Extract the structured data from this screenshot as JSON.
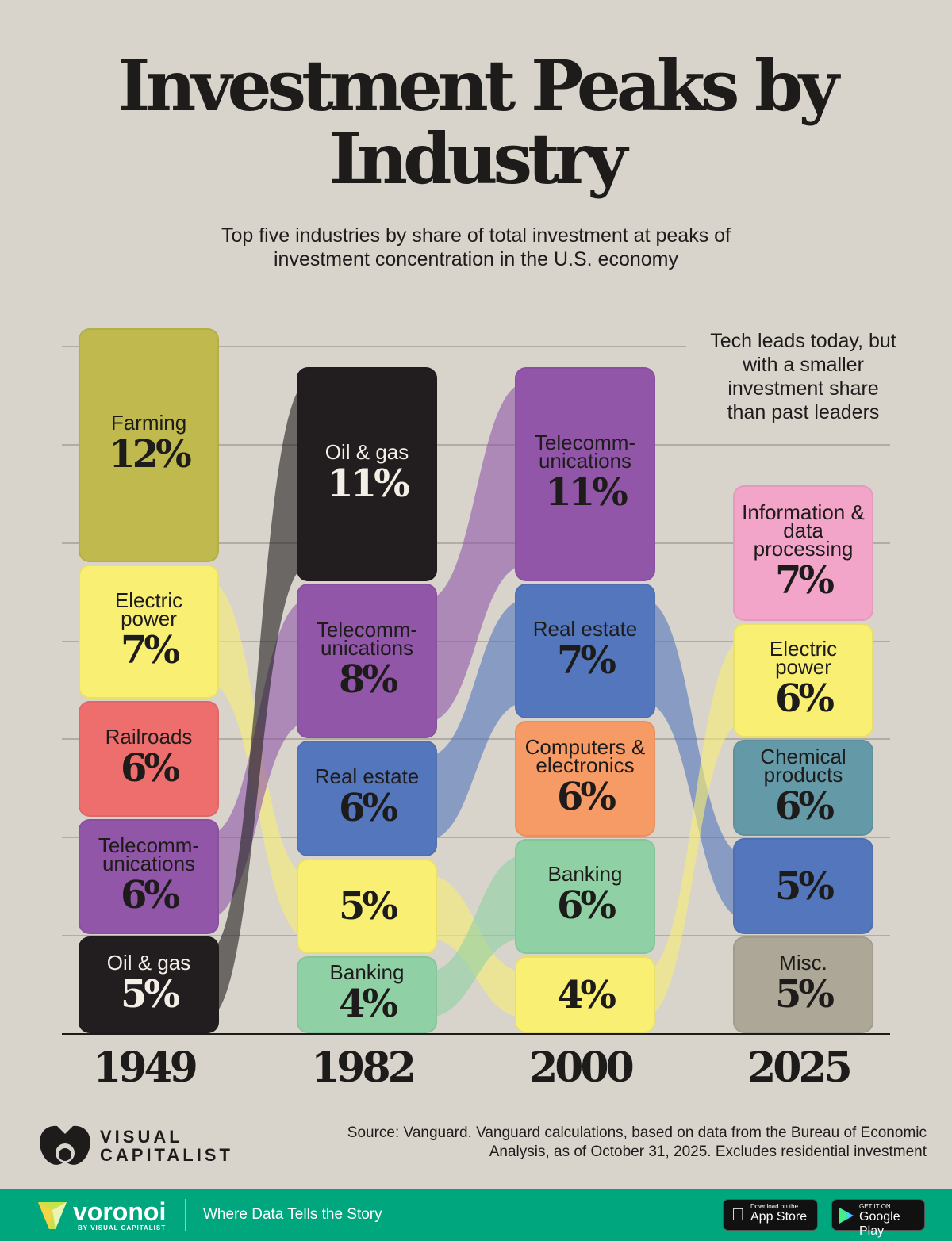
{
  "title": "Investment Peaks by Industry",
  "subtitle": "Top five industries by share of total investment at peaks of investment concentration in the U.S. economy",
  "annotation": "Tech leads today, but with a smaller investment share than past leaders",
  "source": "Source: Vanguard. Vanguard calculations, based on data from the Bureau of Economic Analysis, as of October 31, 2025. Excludes residential investment",
  "brand": {
    "name": "VISUAL CAPITALIST"
  },
  "footer": {
    "logo": "voronoi",
    "logo_sub": "BY VISUAL CAPITALIST",
    "tagline": "Where Data Tells the Story",
    "appstore_small": "Download on the",
    "appstore": "App Store",
    "play_small": "GET IT ON",
    "play": "Google Play"
  },
  "colors": {
    "Farming": "#bfb94e",
    "Electric power": "#f8ef73",
    "Railroads": "#ee6e6e",
    "Telecommunications": "#9156a8",
    "Oil & gas": "#221e1f",
    "Real estate": "#5476bc",
    "Banking": "#8fd1a4",
    "Computers & electronics": "#f69a66",
    "Information & data processing": "#f2a5c8",
    "Chemical products": "#6499a8",
    "Misc.": "#aca796"
  },
  "chart_data": {
    "type": "stacked bar with flows",
    "unit": "% of total investment",
    "categories": [
      "1949",
      "1982",
      "2000",
      "2025"
    ],
    "columns": [
      {
        "year": "1949",
        "items": [
          {
            "industry": "Farming",
            "label": "Farming",
            "value": 12,
            "value_label": "12%"
          },
          {
            "industry": "Electric power",
            "label": "Electric power",
            "value": 7,
            "value_label": "7%"
          },
          {
            "industry": "Railroads",
            "label": "Railroads",
            "value": 6,
            "value_label": "6%"
          },
          {
            "industry": "Telecommunications",
            "label": "Telecomm- unications",
            "value": 6,
            "value_label": "6%"
          },
          {
            "industry": "Oil & gas",
            "label": "Oil & gas",
            "value": 5,
            "value_label": "5%"
          }
        ]
      },
      {
        "year": "1982",
        "items": [
          {
            "industry": "Oil & gas",
            "label": "Oil & gas",
            "value": 11,
            "value_label": "11%"
          },
          {
            "industry": "Telecommunications",
            "label": "Telecomm- unications",
            "value": 8,
            "value_label": "8%"
          },
          {
            "industry": "Real estate",
            "label": "Real estate",
            "value": 6,
            "value_label": "6%"
          },
          {
            "industry": "Electric power",
            "label": "",
            "value": 5,
            "value_label": "5%"
          },
          {
            "industry": "Banking",
            "label": "Banking",
            "value": 4,
            "value_label": "4%"
          }
        ]
      },
      {
        "year": "2000",
        "items": [
          {
            "industry": "Telecommunications",
            "label": "Telecomm- unications",
            "value": 11,
            "value_label": "11%"
          },
          {
            "industry": "Real estate",
            "label": "Real estate",
            "value": 7,
            "value_label": "7%"
          },
          {
            "industry": "Computers & electronics",
            "label": "Computers & electronics",
            "value": 6,
            "value_label": "6%"
          },
          {
            "industry": "Banking",
            "label": "Banking",
            "value": 6,
            "value_label": "6%"
          },
          {
            "industry": "Electric power",
            "label": "",
            "value": 4,
            "value_label": "4%"
          }
        ]
      },
      {
        "year": "2025",
        "items": [
          {
            "industry": "Information & data processing",
            "label": "Information & data processing",
            "value": 7,
            "value_label": "7%"
          },
          {
            "industry": "Electric power",
            "label": "Electric power",
            "value": 6,
            "value_label": "6%"
          },
          {
            "industry": "Chemical products",
            "label": "Chemical products",
            "value": 6,
            "value_label": "6%"
          },
          {
            "industry": "Real estate",
            "label": "",
            "value": 5,
            "value_label": "5%"
          },
          {
            "industry": "Misc.",
            "label": "Misc.",
            "value": 5,
            "value_label": "5%"
          }
        ]
      }
    ],
    "ylim": [
      0,
      35
    ],
    "grid": true
  }
}
